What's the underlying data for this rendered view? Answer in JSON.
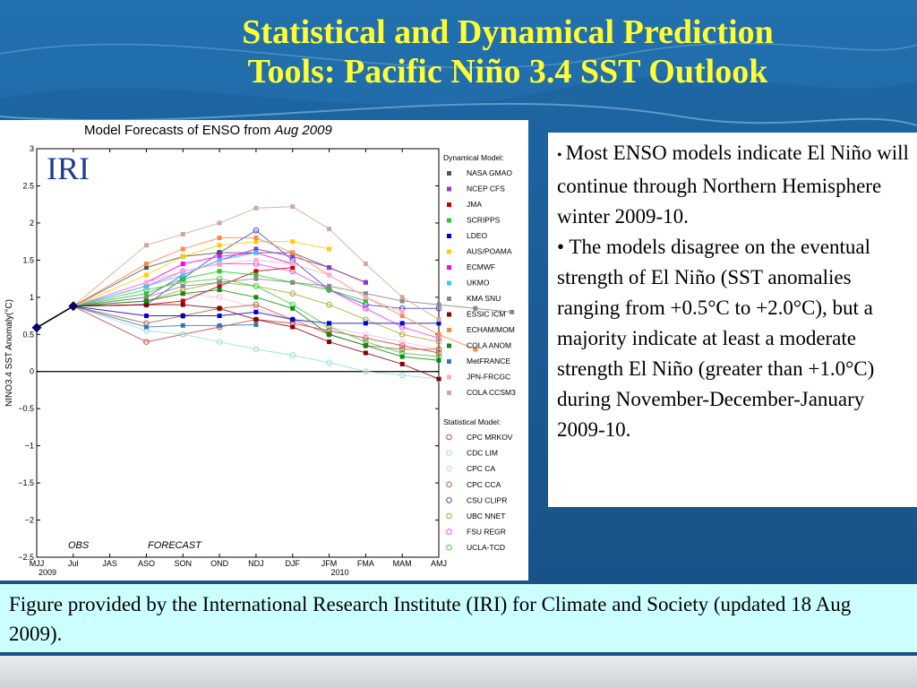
{
  "slide": {
    "title_line1": "Statistical and Dynamical Prediction",
    "title_line2": "Tools: Pacific Niño 3.4 SST Outlook"
  },
  "bullets": [
    "Most ENSO models indicate El Niño will continue through Northern Hemisphere winter 2009-10.",
    "The models disagree on the eventual strength of El Niño (SST anomalies ranging from +0.5°C to +2.0°C), but a majority indicate at least a moderate strength El Niño (greater than +1.0°C) during November-December-January 2009-10."
  ],
  "caption": "Figure provided by the International Research Institute (IRI) for Climate and Society (updated 18 Aug 2009).",
  "chart_data": {
    "type": "line",
    "title": "Model Forecasts of ENSO from",
    "title_italic": "Aug 2009",
    "logo": "IRI",
    "ylabel": "NINO3.4 SST Anomaly(°C)",
    "xlabel": "",
    "ylim": [
      -2.5,
      3
    ],
    "yticks": [
      "3",
      "2.5",
      "2",
      "1.5",
      "1",
      "0.5",
      "0",
      "−0.5",
      "−1",
      "−1.5",
      "−2",
      "−2.5"
    ],
    "ytick_values": [
      3,
      2.5,
      2,
      1.5,
      1,
      0.5,
      0,
      -0.5,
      -1,
      -1.5,
      -2,
      -2.5
    ],
    "categories": [
      "MJJ",
      "Jul",
      "JAS",
      "ASO",
      "SON",
      "OND",
      "NDJ",
      "DJF",
      "JFM",
      "FMA",
      "MAM",
      "AMJ"
    ],
    "year_labels": [
      {
        "label": "2009",
        "at": "MJJ"
      },
      {
        "label": "2010",
        "at": "JFM"
      }
    ],
    "obs_label": "OBS",
    "forecast_label": "FORECAST",
    "observed": {
      "x": [
        "MJJ",
        "Jul"
      ],
      "values": [
        0.59,
        0.88
      ],
      "color": "#000080"
    },
    "legend_position": "right",
    "dynamical_header": "Dynamical Model:",
    "statistical_header": "Statistical Model:",
    "dynamical_series": [
      {
        "name": "NASA GMAO",
        "color": "#555555",
        "values": [
          1.4,
          1.55,
          1.6,
          1.6,
          1.6,
          1.4,
          1.2
        ]
      },
      {
        "name": "NCEP CFS",
        "color": "#9933cc",
        "values": [
          1.0,
          1.3,
          1.5,
          1.65,
          1.55,
          1.4,
          1.2
        ]
      },
      {
        "name": "JMA",
        "color": "#cc0000",
        "values": [
          0.9,
          0.95,
          1.15,
          1.35,
          1.4
        ]
      },
      {
        "name": "SCRIPPS",
        "color": "#22cc22",
        "values": [
          1.05,
          1.25,
          1.35,
          1.3,
          1.2,
          1.1,
          0.95
        ]
      },
      {
        "name": "LDEO",
        "color": "#0000cc",
        "values": [
          0.75,
          0.75,
          0.75,
          0.8,
          0.7,
          0.65,
          0.65,
          0.65,
          0.65
        ]
      },
      {
        "name": "AUS/POAMA",
        "color": "#ffcc00",
        "values": [
          1.3,
          1.55,
          1.7,
          1.75,
          1.75,
          1.65
        ]
      },
      {
        "name": "ECMWF",
        "color": "#ff00ff",
        "values": [
          1.2,
          1.45,
          1.55,
          1.6,
          1.45
        ]
      },
      {
        "name": "UKMO",
        "color": "#33ccff",
        "values": [
          1.15,
          1.3,
          1.5,
          1.6
        ]
      },
      {
        "name": "KMA SNU",
        "color": "#888888",
        "values": [
          1.0,
          1.15,
          1.2,
          1.25,
          1.2,
          1.15,
          1.05,
          0.95,
          0.9,
          0.85,
          0.8
        ]
      },
      {
        "name": "ESSIC ICM",
        "color": "#880000",
        "values": [
          0.9,
          0.9,
          0.85,
          0.7,
          0.6,
          0.4,
          0.25,
          0.1,
          -0.1
        ]
      },
      {
        "name": "ECHAM/MOM",
        "color": "#ff8844",
        "values": [
          1.45,
          1.65,
          1.8,
          1.8,
          1.6,
          1.3,
          1.0,
          0.75,
          0.5,
          0.3
        ]
      },
      {
        "name": "COLA ANOM",
        "color": "#118811",
        "values": [
          0.95,
          1.05,
          1.1,
          1.0,
          0.85,
          0.5,
          0.35,
          0.2,
          0.15
        ]
      },
      {
        "name": "MetFRANCE",
        "color": "#3377bb",
        "values": [
          0.6,
          0.62,
          0.62,
          0.63
        ]
      },
      {
        "name": "JPN-FRCGC",
        "color": "#ffaacc",
        "values": [
          1.2,
          1.35,
          1.45,
          1.5,
          1.45,
          1.3,
          1.0,
          0.8
        ]
      },
      {
        "name": "COLA CCSM3",
        "color": "#ccaa99",
        "values": [
          1.7,
          1.85,
          2.0,
          2.2,
          2.22,
          1.92,
          1.45,
          1.0,
          0.7
        ]
      }
    ],
    "statistical_series": [
      {
        "name": "CPC MRKOV",
        "color": "#cc4444",
        "values": [
          0.4,
          0.5,
          0.6,
          0.7,
          0.65,
          0.55,
          0.45,
          0.35,
          0.25
        ]
      },
      {
        "name": "CDC LIM",
        "color": "#99dddd",
        "values": [
          0.55,
          0.5,
          0.4,
          0.3,
          0.22,
          0.12,
          0.0,
          -0.05,
          -0.1
        ]
      },
      {
        "name": "CPC CA",
        "color": "#ffbbdd",
        "values": [
          0.95,
          1.05,
          1.0,
          0.85,
          0.7,
          0.6,
          0.5,
          0.4,
          0.3
        ]
      },
      {
        "name": "CPC CCA",
        "color": "#aa6644",
        "values": [
          0.65,
          0.75,
          0.85,
          0.9,
          0.7,
          0.5,
          0.35,
          0.3,
          0.3
        ]
      },
      {
        "name": "CSU CLIPR",
        "color": "#4444cc",
        "values": [
          0.9,
          1.25,
          1.6,
          1.9,
          1.5,
          1.1,
          0.9,
          0.85,
          0.85
        ]
      },
      {
        "name": "UBC NNET",
        "color": "#aaaa33",
        "values": [
          0.95,
          1.1,
          1.2,
          1.15,
          1.05,
          0.9,
          0.7,
          0.5,
          0.4
        ]
      },
      {
        "name": "FSU REGR",
        "color": "#ee44ee",
        "values": [
          1.15,
          1.35,
          1.45,
          1.45,
          1.35,
          1.1,
          0.85,
          0.6,
          0.45
        ]
      },
      {
        "name": "UCLA-TCD",
        "color": "#44cc44",
        "values": [
          1.1,
          1.2,
          1.25,
          1.15,
          0.9,
          0.6,
          0.4,
          0.25,
          0.2
        ]
      }
    ]
  }
}
